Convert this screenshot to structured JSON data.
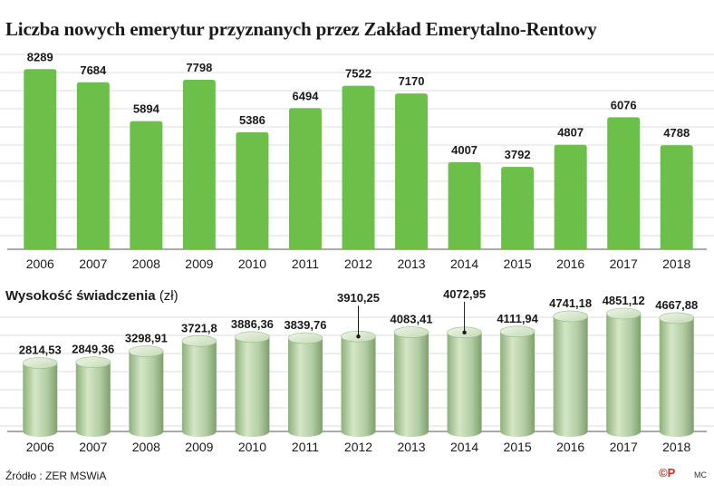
{
  "chart_data": [
    {
      "type": "bar",
      "title": "Liczba nowych emerytur przyznanych przez Zakład Emerytalno-Rentowy",
      "categories": [
        "2006",
        "2007",
        "2008",
        "2009",
        "2010",
        "2011",
        "2012",
        "2013",
        "2014",
        "2015",
        "2016",
        "2017",
        "2018"
      ],
      "values": [
        8289,
        7684,
        5894,
        7798,
        5386,
        6494,
        7522,
        7170,
        4007,
        3792,
        4807,
        6076,
        4788
      ],
      "labels": [
        "8289",
        "7684",
        "5894",
        "7798",
        "5386",
        "6494",
        "7522",
        "7170",
        "4007",
        "3792",
        "4807",
        "6076",
        "4788"
      ],
      "ylim": [
        0,
        8300
      ],
      "grid": true,
      "color": "#6cc04a"
    },
    {
      "type": "bar",
      "title": "Wysokość świadczenia",
      "unit": "(zł)",
      "categories": [
        "2006",
        "2007",
        "2008",
        "2009",
        "2010",
        "2011",
        "2012",
        "2013",
        "2014",
        "2015",
        "2016",
        "2017",
        "2018"
      ],
      "values": [
        2814.53,
        2849.36,
        3298.91,
        3721.8,
        3886.36,
        3839.76,
        3910.25,
        4083.41,
        4072.95,
        4111.94,
        4741.18,
        4851.12,
        4667.88
      ],
      "labels": [
        "2814,53",
        "2849,36",
        "3298,91",
        "3721,8",
        "3886,36",
        "3839,76",
        "3910,25",
        "4083,41",
        "4072,95",
        "4111,94",
        "4741,18",
        "4851,12",
        "4667,88"
      ],
      "ylim": [
        0,
        5000
      ],
      "grid": true,
      "color": "#a9c69a"
    }
  ],
  "footer": {
    "source": "Źródło : ZER MSWiA",
    "logo": "©P",
    "credit": "MC"
  }
}
